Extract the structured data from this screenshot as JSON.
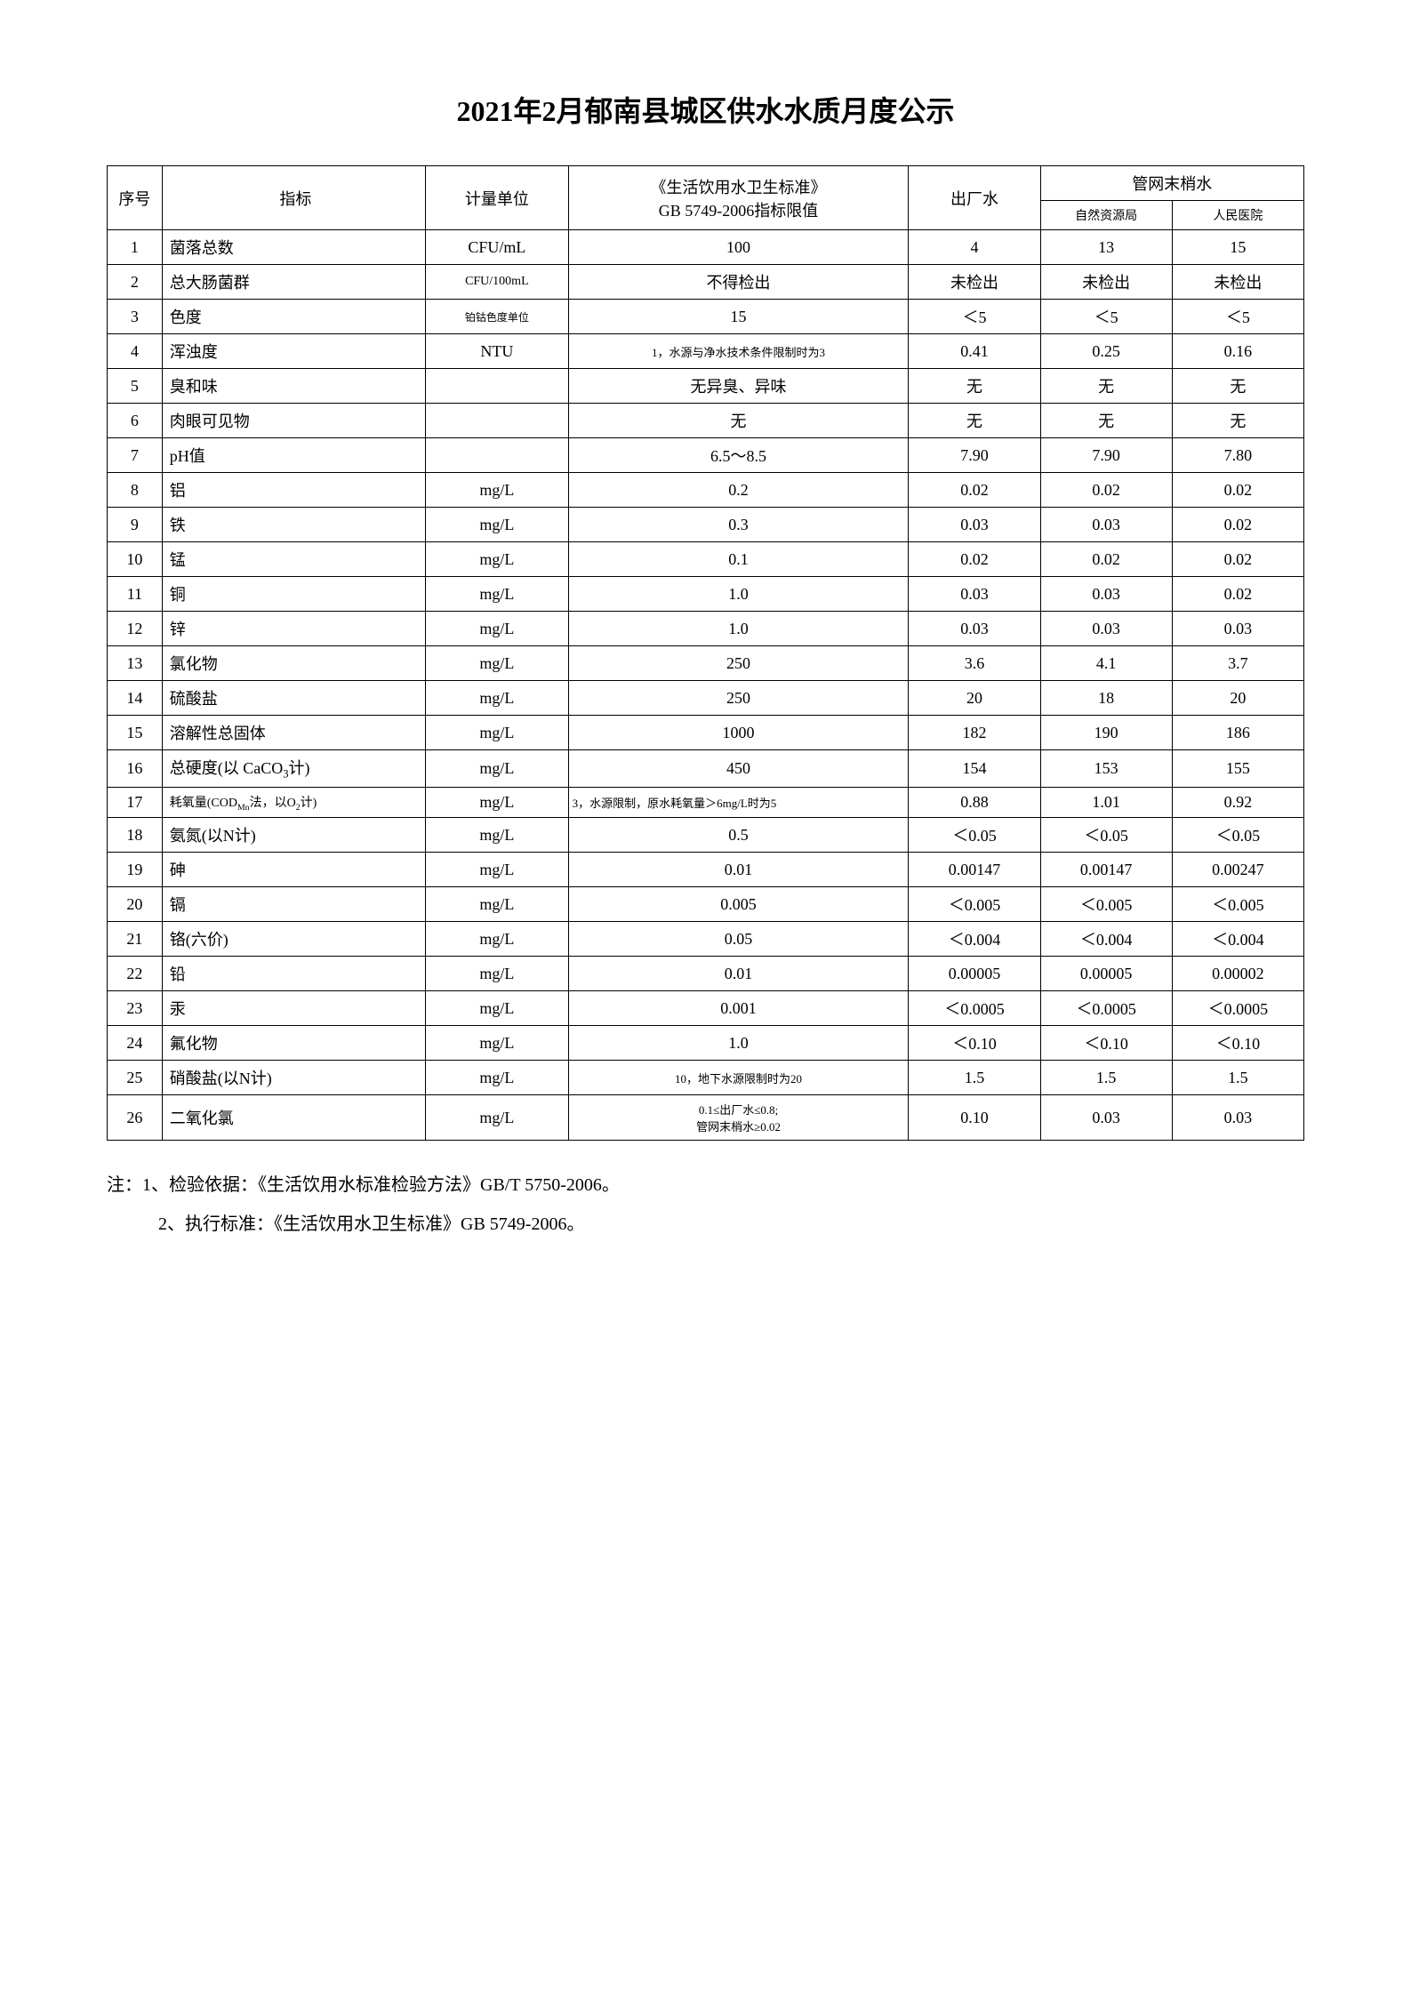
{
  "title": "2021年2月郁南县城区供水水质月度公示",
  "headers": {
    "seq": "序号",
    "indicator": "指标",
    "unit": "计量单位",
    "standard_line1": "《生活饮用水卫生标准》",
    "standard_line2": "GB 5749-2006指标限值",
    "factory": "出厂水",
    "pipe_end": "管网末梢水",
    "sub1": "自然资源局",
    "sub2": "人民医院"
  },
  "rows": [
    {
      "seq": "1",
      "indicator": "菌落总数",
      "unit": "CFU/mL",
      "standard": "100",
      "v1": "4",
      "v2": "13",
      "v3": "15"
    },
    {
      "seq": "2",
      "indicator": "总大肠菌群",
      "unit": "CFU/100mL",
      "unit_small": true,
      "standard": "不得检出",
      "v1": "未检出",
      "v2": "未检出",
      "v3": "未检出"
    },
    {
      "seq": "3",
      "indicator": "色度",
      "unit": "铂钴色度单位",
      "unit_tiny": true,
      "standard": "15",
      "v1": "＜5",
      "v2": "＜5",
      "v3": "＜5"
    },
    {
      "seq": "4",
      "indicator": "浑浊度",
      "unit": "NTU",
      "standard": "1，水源与净水技术条件限制时为3",
      "standard_small": true,
      "v1": "0.41",
      "v2": "0.25",
      "v3": "0.16"
    },
    {
      "seq": "5",
      "indicator": "臭和味",
      "unit": "",
      "standard": "无异臭、异味",
      "v1": "无",
      "v2": "无",
      "v3": "无"
    },
    {
      "seq": "6",
      "indicator": "肉眼可见物",
      "unit": "",
      "standard": "无",
      "v1": "无",
      "v2": "无",
      "v3": "无"
    },
    {
      "seq": "7",
      "indicator": "pH值",
      "unit": "",
      "standard": "6.5～8.5",
      "v1": "7.90",
      "v2": "7.90",
      "v3": "7.80"
    },
    {
      "seq": "8",
      "indicator": "铝",
      "unit": "mg/L",
      "standard": "0.2",
      "v1": "0.02",
      "v2": "0.02",
      "v3": "0.02"
    },
    {
      "seq": "9",
      "indicator": "铁",
      "unit": "mg/L",
      "standard": "0.3",
      "v1": "0.03",
      "v2": "0.03",
      "v3": "0.02"
    },
    {
      "seq": "10",
      "indicator": "锰",
      "unit": "mg/L",
      "standard": "0.1",
      "v1": "0.02",
      "v2": "0.02",
      "v3": "0.02"
    },
    {
      "seq": "11",
      "indicator": "铜",
      "unit": "mg/L",
      "standard": "1.0",
      "v1": "0.03",
      "v2": "0.03",
      "v3": "0.02"
    },
    {
      "seq": "12",
      "indicator": "锌",
      "unit": "mg/L",
      "standard": "1.0",
      "v1": "0.03",
      "v2": "0.03",
      "v3": "0.03"
    },
    {
      "seq": "13",
      "indicator": "氯化物",
      "unit": "mg/L",
      "standard": "250",
      "v1": "3.6",
      "v2": "4.1",
      "v3": "3.7"
    },
    {
      "seq": "14",
      "indicator": "硫酸盐",
      "unit": "mg/L",
      "standard": "250",
      "v1": "20",
      "v2": "18",
      "v3": "20"
    },
    {
      "seq": "15",
      "indicator": "溶解性总固体",
      "unit": "mg/L",
      "standard": "1000",
      "v1": "182",
      "v2": "190",
      "v3": "186"
    },
    {
      "seq": "16",
      "indicator": "总硬度(以 CaCO₃计)",
      "indicator_html": "总硬度(以 CaCO<sub>3</sub>计)",
      "unit": "mg/L",
      "standard": "450",
      "v1": "154",
      "v2": "153",
      "v3": "155"
    },
    {
      "seq": "17",
      "indicator": "耗氧量(CODMn法，以O2计)",
      "indicator_html": "耗氧量(COD<sub>Mn</sub>法，以O<sub>2</sub>计)",
      "indicator_small": true,
      "unit": "mg/L",
      "standard": "3，水源限制，原水耗氧量＞6mg/L时为5",
      "standard_small": true,
      "standard_left": true,
      "v1": "0.88",
      "v2": "1.01",
      "v3": "0.92"
    },
    {
      "seq": "18",
      "indicator": "氨氮(以N计)",
      "unit": "mg/L",
      "standard": "0.5",
      "v1": "＜0.05",
      "v2": "＜0.05",
      "v3": "＜0.05"
    },
    {
      "seq": "19",
      "indicator": "砷",
      "unit": "mg/L",
      "standard": "0.01",
      "v1": "0.00147",
      "v2": "0.00147",
      "v3": "0.00247"
    },
    {
      "seq": "20",
      "indicator": "镉",
      "unit": "mg/L",
      "standard": "0.005",
      "v1": "＜0.005",
      "v2": "＜0.005",
      "v3": "＜0.005"
    },
    {
      "seq": "21",
      "indicator": "铬(六价)",
      "unit": "mg/L",
      "standard": "0.05",
      "v1": "＜0.004",
      "v2": "＜0.004",
      "v3": "＜0.004"
    },
    {
      "seq": "22",
      "indicator": "铅",
      "unit": "mg/L",
      "standard": "0.01",
      "v1": "0.00005",
      "v2": "0.00005",
      "v3": "0.00002"
    },
    {
      "seq": "23",
      "indicator": "汞",
      "unit": "mg/L",
      "standard": "0.001",
      "v1": "＜0.0005",
      "v2": "＜0.0005",
      "v3": "＜0.0005"
    },
    {
      "seq": "24",
      "indicator": "氟化物",
      "unit": "mg/L",
      "standard": "1.0",
      "v1": "＜0.10",
      "v2": "＜0.10",
      "v3": "＜0.10"
    },
    {
      "seq": "25",
      "indicator": "硝酸盐(以N计)",
      "unit": "mg/L",
      "standard": "10，地下水源限制时为20",
      "standard_small": true,
      "v1": "1.5",
      "v2": "1.5",
      "v3": "1.5"
    },
    {
      "seq": "26",
      "indicator": "二氧化氯",
      "unit": "mg/L",
      "standard": "0.1≤出厂水≤0.8;\n管网末梢水≥0.02",
      "standard_small": true,
      "standard_multiline": true,
      "v1": "0.10",
      "v2": "0.03",
      "v3": "0.03"
    }
  ],
  "notes": {
    "line1": "注：1、检验依据：《生活饮用水标准检验方法》GB/T 5750-2006。",
    "line2": "2、执行标准：《生活饮用水卫生标准》GB 5749-2006。"
  },
  "styling": {
    "title_fontsize": 32,
    "body_fontsize": 18,
    "notes_fontsize": 20,
    "small_fontsize": 14,
    "border_color": "#000000",
    "background_color": "#ffffff",
    "text_color": "#000000",
    "font_family": "SimSun"
  }
}
